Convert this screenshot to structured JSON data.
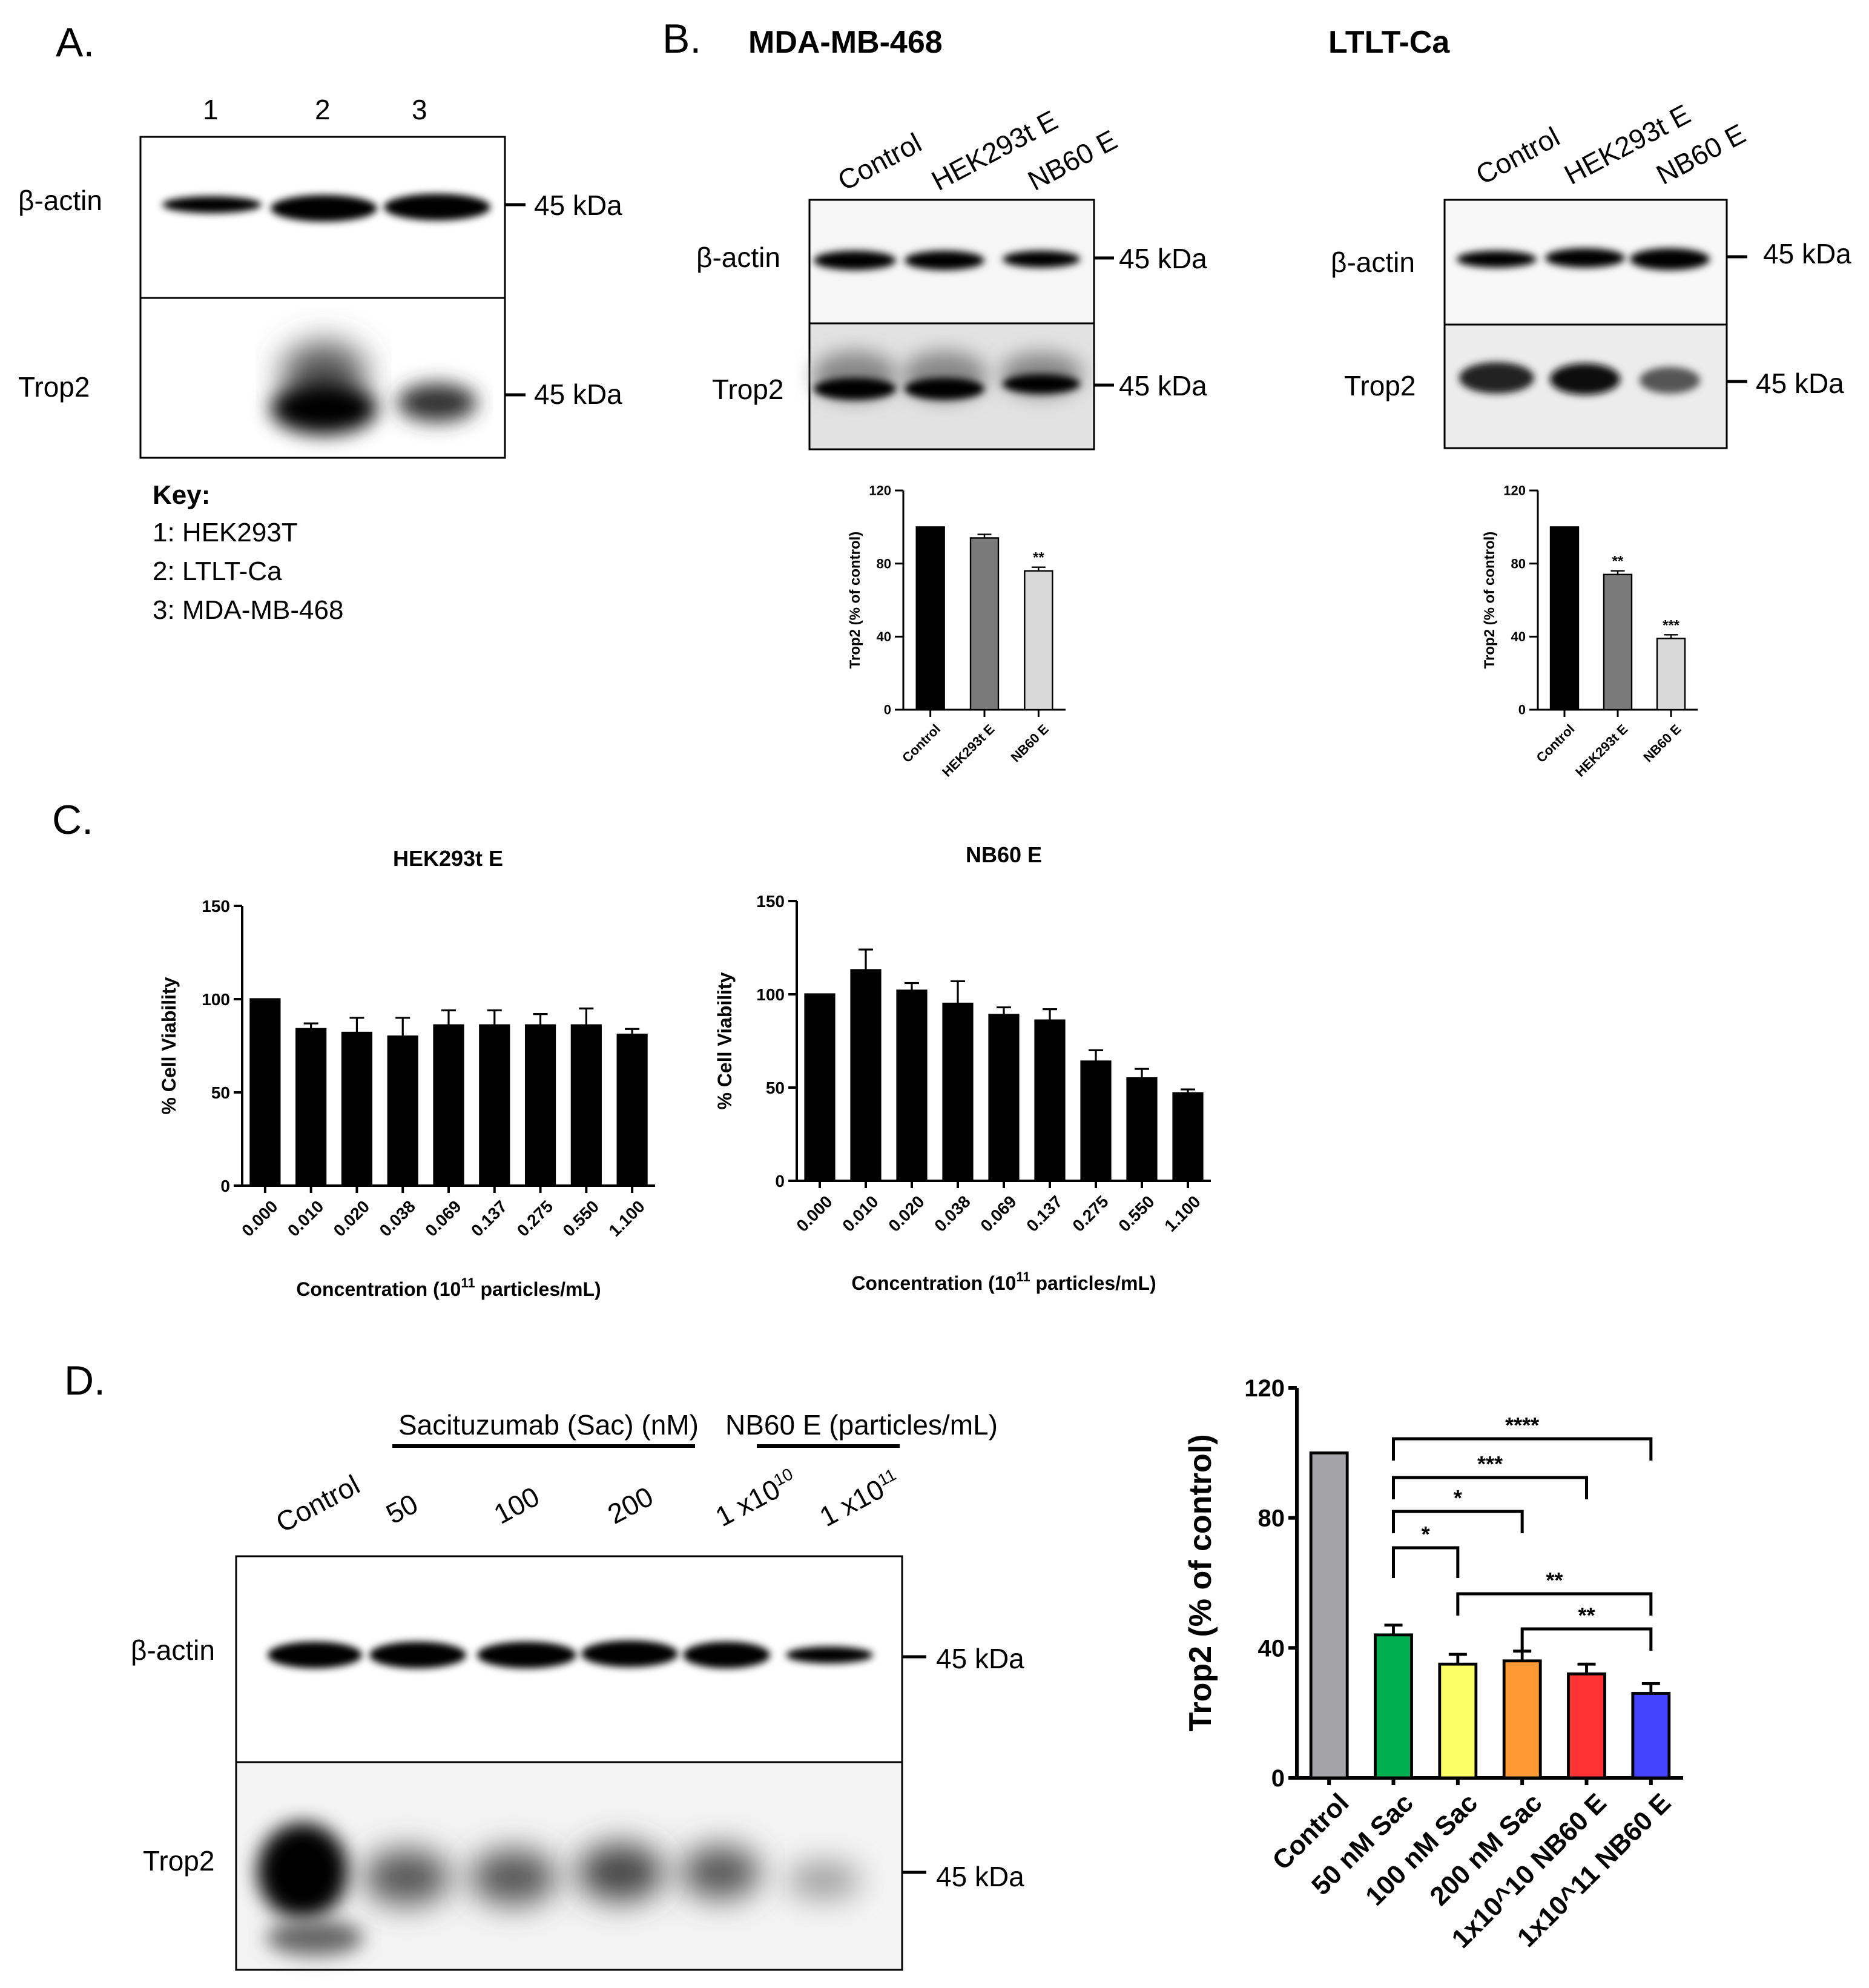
{
  "panels": {
    "a": {
      "letter": "A.",
      "lanes": [
        "1",
        "2",
        "3"
      ],
      "rows": [
        "β-actin",
        "Trop2"
      ],
      "markers": [
        "45 kDa",
        "45 kDa"
      ],
      "key": {
        "title": "Key:",
        "items": [
          "1: HEK293T",
          "2: LTLT-Ca",
          "3: MDA-MB-468"
        ]
      }
    },
    "b": {
      "letter": "B.",
      "left": {
        "title": "MDA-MB-468",
        "lanes": [
          "Control",
          "HEK293t E",
          "NB60 E"
        ],
        "rows": [
          "β-actin",
          "Trop2"
        ],
        "markers": [
          "45 kDa",
          "45 kDa"
        ]
      },
      "right": {
        "title": "LTLT-Ca",
        "lanes": [
          "Control",
          "HEK293t E",
          "NB60 E"
        ],
        "rows": [
          "β-actin",
          "Trop2"
        ],
        "markers": [
          "45 kDa",
          "45 kDa"
        ]
      }
    },
    "c": {
      "letter": "C."
    },
    "d": {
      "letter": "D.",
      "group_labels": [
        "Sacituzumab (Sac) (nM)",
        "NB60 E (particles/mL)"
      ],
      "lanes": [
        "Control",
        "50",
        "100",
        "200"
      ],
      "lane_exp": [
        {
          "base": "1 x10",
          "exp": "10"
        },
        {
          "base": "1 x10",
          "exp": "11"
        }
      ],
      "rows": [
        "β-actin",
        "Trop2"
      ],
      "markers": [
        "45 kDa",
        "45 kDa"
      ]
    }
  },
  "colors": {
    "black": "#000000",
    "dark_gray": "#7a7a7a",
    "light_gray": "#d9d9d9",
    "control_gray": "#a4a4a8",
    "green": "#00b050",
    "yellow": "#ffff66",
    "orange": "#ff9933",
    "red": "#ff3333",
    "blue": "#4444ff"
  },
  "chart_data": [
    {
      "id": "b_mda",
      "type": "bar",
      "categories": [
        "Control",
        "HEK293t E",
        "NB60 E"
      ],
      "values": [
        100,
        94,
        76
      ],
      "errors": [
        0,
        2,
        2
      ],
      "colors": [
        "#000000",
        "#7a7a7a",
        "#d9d9d9"
      ],
      "significance": [
        "",
        "",
        "**"
      ],
      "ylabel": "Trop2 (% of control)",
      "ylim": [
        0,
        120
      ],
      "yticks": [
        0,
        40,
        80,
        120
      ]
    },
    {
      "id": "b_ltlt",
      "type": "bar",
      "categories": [
        "Control",
        "HEK293t E",
        "NB60 E"
      ],
      "values": [
        100,
        74,
        39
      ],
      "errors": [
        0,
        2,
        2
      ],
      "colors": [
        "#000000",
        "#7a7a7a",
        "#d9d9d9"
      ],
      "significance": [
        "",
        "**",
        "***"
      ],
      "ylabel": "Trop2 (% of control)",
      "ylim": [
        0,
        120
      ],
      "yticks": [
        0,
        40,
        80,
        120
      ]
    },
    {
      "id": "c_hek",
      "type": "bar",
      "title": "HEK293t E",
      "categories": [
        "0.000",
        "0.010",
        "0.020",
        "0.038",
        "0.069",
        "0.137",
        "0.275",
        "0.550",
        "1.100"
      ],
      "values": [
        100,
        84,
        82,
        80,
        86,
        86,
        86,
        86,
        81
      ],
      "errors": [
        0,
        3,
        8,
        10,
        8,
        8,
        6,
        9,
        3
      ],
      "ylabel": "% Cell Viability",
      "xlabel": {
        "pre": "Concentration (10",
        "sup": "11",
        "post": " particles/mL)"
      },
      "ylim": [
        0,
        150
      ],
      "yticks": [
        0,
        50,
        100,
        150
      ]
    },
    {
      "id": "c_nb60",
      "type": "bar",
      "title": "NB60 E",
      "categories": [
        "0.000",
        "0.010",
        "0.020",
        "0.038",
        "0.069",
        "0.137",
        "0.275",
        "0.550",
        "1.100"
      ],
      "values": [
        100,
        113,
        102,
        95,
        89,
        86,
        64,
        55,
        47
      ],
      "errors": [
        0,
        11,
        4,
        12,
        4,
        6,
        6,
        5,
        2
      ],
      "ylabel": "% Cell Viability",
      "xlabel": {
        "pre": "Concentration (10",
        "sup": "11",
        "post": " particles/mL)"
      },
      "ylim": [
        0,
        150
      ],
      "yticks": [
        0,
        50,
        100,
        150
      ]
    },
    {
      "id": "d_trop2",
      "type": "bar",
      "categories": [
        "Control",
        "50 nM Sac",
        "100 nM Sac",
        "200 nM Sac",
        "1x10^10 NB60 E",
        "1x10^11 NB60 E"
      ],
      "values": [
        100,
        44,
        35,
        36,
        32,
        26
      ],
      "errors": [
        0,
        3,
        3,
        3,
        3,
        3
      ],
      "colors": [
        "#a4a4a8",
        "#00b050",
        "#ffff66",
        "#ff9933",
        "#ff3333",
        "#4444ff"
      ],
      "ylabel": "Trop2 (% of control)",
      "ylim": [
        0,
        120
      ],
      "yticks": [
        0,
        40,
        80,
        120
      ],
      "brackets": [
        {
          "from": 1,
          "to": 5,
          "label": "****"
        },
        {
          "from": 1,
          "to": 4,
          "label": "***"
        },
        {
          "from": 1,
          "to": 3,
          "label": "*"
        },
        {
          "from": 1,
          "to": 2,
          "label": "*"
        },
        {
          "from": 2,
          "to": 5,
          "label": "**"
        },
        {
          "from": 3,
          "to": 5,
          "label": "**"
        }
      ]
    }
  ]
}
